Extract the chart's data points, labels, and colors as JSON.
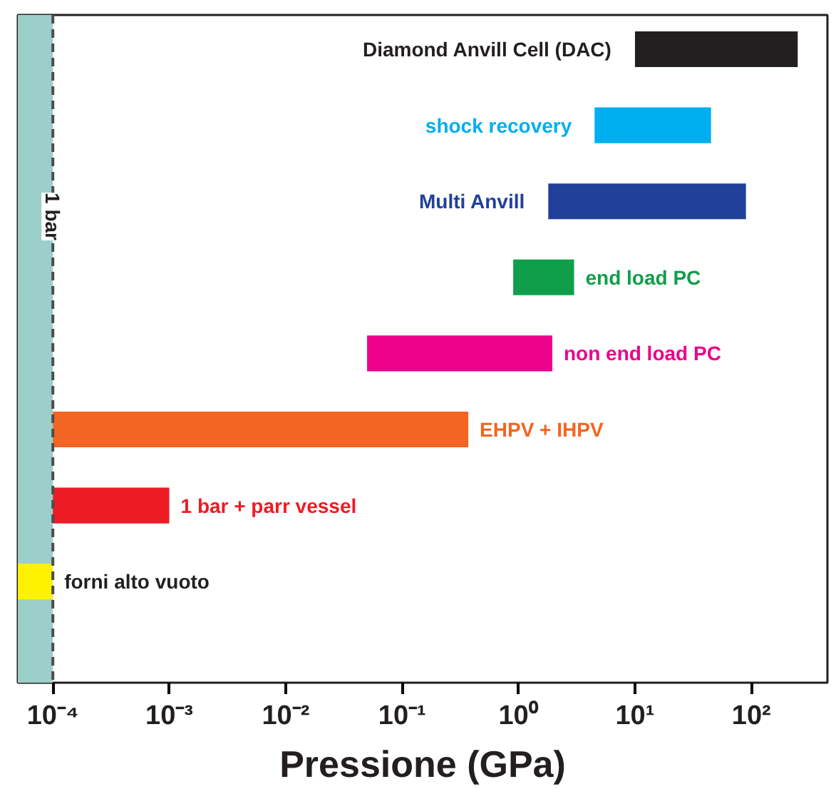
{
  "chart_data": {
    "type": "bar",
    "orientation": "horizontal",
    "xlabel": "Pressione (GPa)",
    "categories": [
      "Diamond Anvill Cell (DAC)",
      "shock recovery",
      "Multi Anvill",
      "end load PC",
      "non end load PC",
      "EHPV + IHPV",
      "1 bar + parr vessel",
      "forni alto vuoto"
    ],
    "base": [
      10,
      4.5,
      1.8,
      0.9,
      0.05,
      0.0001,
      0.0001,
      5e-05
    ],
    "values": [
      240,
      40.5,
      88,
      2.1,
      1.9,
      0.37,
      0.0009,
      5e-05
    ],
    "colors": [
      "#231f20",
      "#00aeef",
      "#21409a",
      "#0f9f4a",
      "#ec008c",
      "#f26522",
      "#ed1c24",
      "#fff200"
    ],
    "log": "x",
    "xlim": [
      5e-05,
      450
    ],
    "xticks": [
      {
        "value": 0.0001,
        "label": "10⁻⁴"
      },
      {
        "value": 0.001,
        "label": "10⁻³"
      },
      {
        "value": 0.01,
        "label": "10⁻²"
      },
      {
        "value": 0.1,
        "label": "10⁻¹"
      },
      {
        "value": 1,
        "label": "10⁰"
      },
      {
        "value": 10,
        "label": "10¹"
      },
      {
        "value": 100,
        "label": "10²"
      }
    ],
    "tick_labels": "x",
    "grid": false,
    "bands": [
      {
        "axis": "x",
        "from": 5e-05,
        "to": 0.0001,
        "color": "#9ccfca"
      }
    ],
    "ref_lines": [
      {
        "axis": "x",
        "value": 0.0001,
        "label": "1 bar",
        "color": "#4d4d4d",
        "line_style": "dashed"
      }
    ]
  }
}
